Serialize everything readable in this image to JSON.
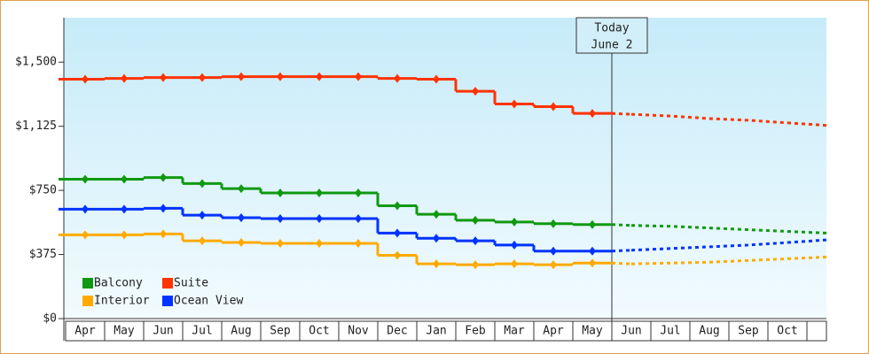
{
  "chart_data": {
    "type": "step-line",
    "categories": [
      "Apr",
      "May",
      "Jun",
      "Jul",
      "Aug",
      "Sep",
      "Oct",
      "Nov",
      "Dec",
      "Jan",
      "Feb",
      "Mar",
      "Apr",
      "May",
      "Jun",
      "Jul",
      "Aug",
      "Sep",
      "Oct"
    ],
    "ylim": [
      0,
      1760
    ],
    "yticks": [
      {
        "value": 0,
        "label": "$0"
      },
      {
        "value": 375,
        "label": "$375"
      },
      {
        "value": 750,
        "label": "$750"
      },
      {
        "value": 1125,
        "label": "$1,125"
      },
      {
        "value": 1500,
        "label": "$1,500"
      }
    ],
    "annotation": [
      "Today",
      "June 2"
    ],
    "legend": "bottom-left",
    "series": [
      {
        "name": "Balcony",
        "color": "#109910",
        "values": [
          815,
          815,
          825,
          790,
          760,
          735,
          735,
          735,
          660,
          610,
          575,
          565,
          555,
          550,
          null,
          null,
          null,
          null,
          null
        ],
        "forecast": [
          null,
          null,
          null,
          null,
          null,
          null,
          null,
          null,
          null,
          null,
          null,
          null,
          null,
          null,
          545,
          540,
          530,
          520,
          510
        ]
      },
      {
        "name": "Suite",
        "color": "#ff3300",
        "values": [
          1400,
          1405,
          1410,
          1410,
          1415,
          1415,
          1415,
          1415,
          1405,
          1400,
          1330,
          1255,
          1240,
          1200,
          null,
          null,
          null,
          null,
          null
        ],
        "forecast": [
          null,
          null,
          null,
          null,
          null,
          null,
          null,
          null,
          null,
          null,
          null,
          null,
          null,
          null,
          1195,
          1185,
          1170,
          1160,
          1145
        ]
      },
      {
        "name": "Interior",
        "color": "#ffaa00",
        "values": [
          490,
          490,
          495,
          455,
          445,
          440,
          440,
          440,
          370,
          320,
          315,
          320,
          315,
          325,
          null,
          null,
          null,
          null,
          null
        ],
        "forecast": [
          null,
          null,
          null,
          null,
          null,
          null,
          null,
          null,
          null,
          null,
          null,
          null,
          null,
          null,
          320,
          325,
          330,
          340,
          350
        ]
      },
      {
        "name": "Ocean View",
        "color": "#0033ff",
        "values": [
          640,
          640,
          645,
          605,
          590,
          585,
          585,
          585,
          500,
          470,
          455,
          430,
          395,
          395,
          null,
          null,
          null,
          null,
          null
        ],
        "forecast": [
          null,
          null,
          null,
          null,
          null,
          null,
          null,
          null,
          null,
          null,
          null,
          null,
          null,
          null,
          400,
          410,
          420,
          430,
          445
        ]
      }
    ]
  }
}
